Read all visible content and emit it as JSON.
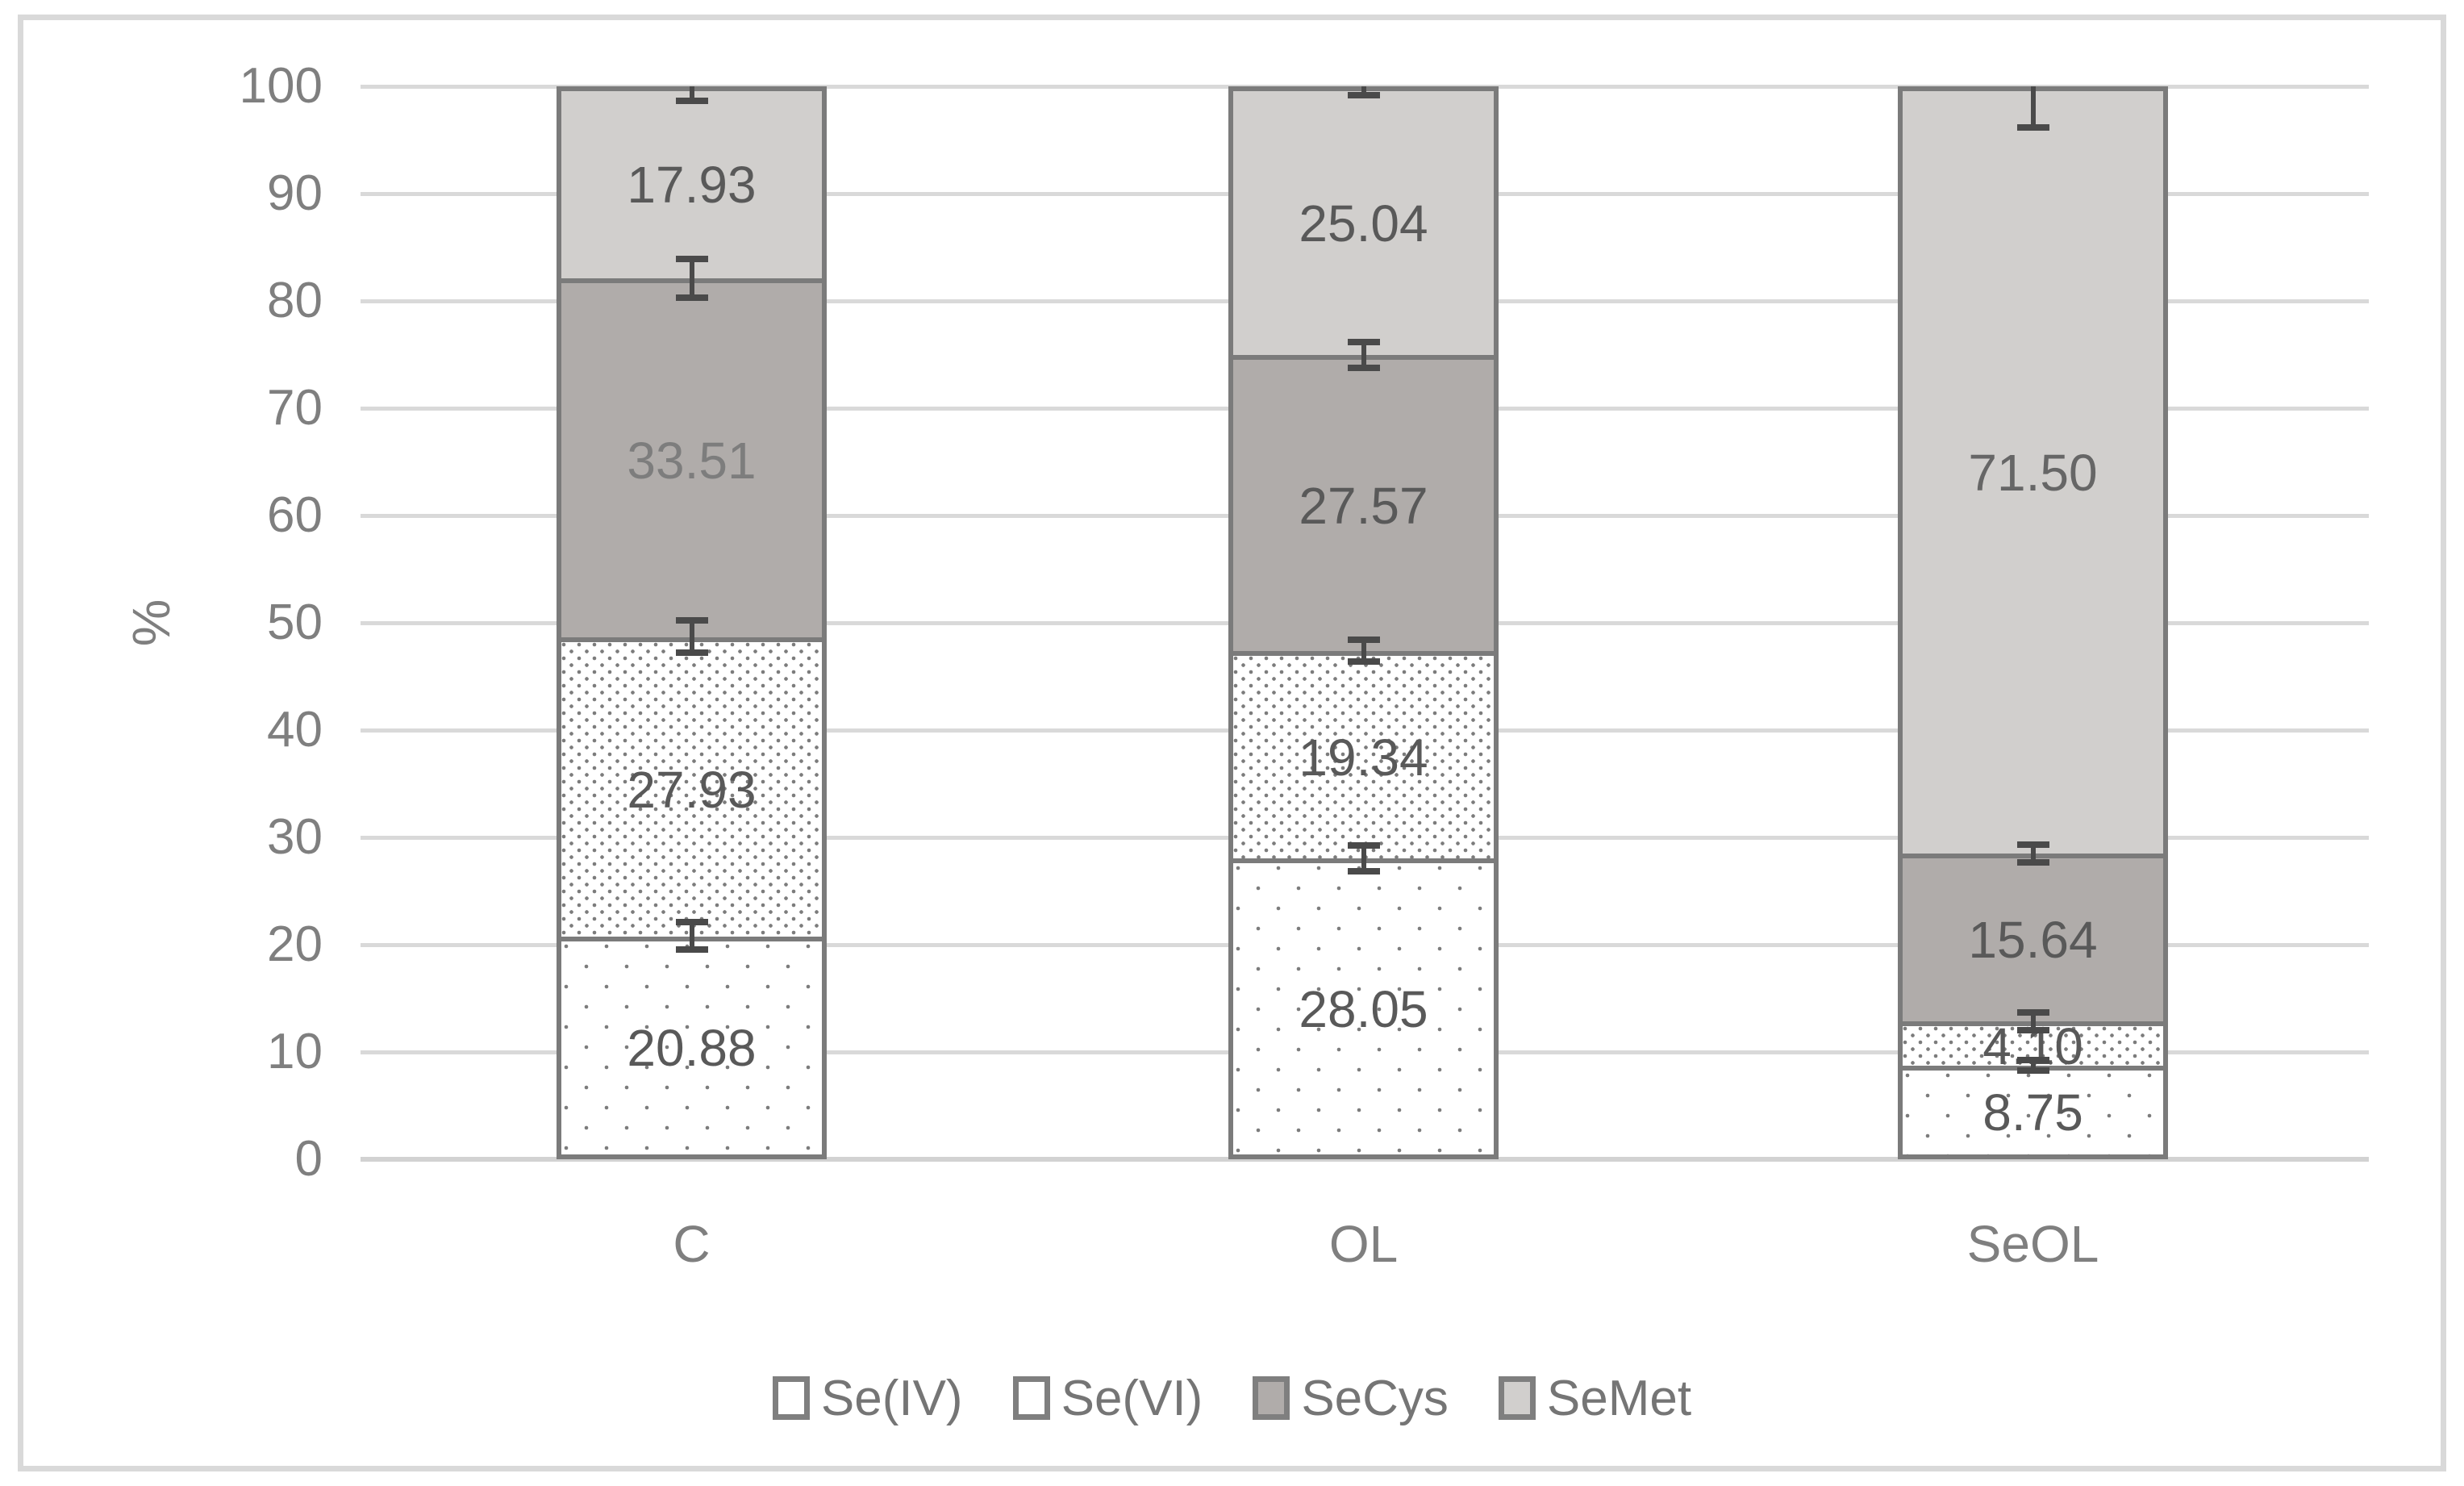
{
  "chart_data": {
    "type": "bar",
    "stacked": true,
    "title": "",
    "categories": [
      "C",
      "OL",
      "SeOL"
    ],
    "series": [
      {
        "name": "Se(IV)",
        "style": "dot-sparse",
        "fill": "#ffffff",
        "values": [
          20.88,
          28.05,
          8.75
        ],
        "labels": [
          "20.88",
          "28.05",
          "8.75"
        ]
      },
      {
        "name": "Se(VI)",
        "style": "dot-dense",
        "fill": "#ffffff",
        "values": [
          27.93,
          19.34,
          4.1
        ],
        "labels": [
          "27.93",
          "19.34",
          "4.10"
        ]
      },
      {
        "name": "SeCys",
        "style": "solid",
        "fill": "#b0acaa",
        "values": [
          33.51,
          27.57,
          15.64
        ],
        "labels": [
          "33.51",
          "27.57",
          "15.64"
        ]
      },
      {
        "name": "SeMet",
        "style": "solid",
        "fill": "#d1cfcd",
        "values": [
          17.93,
          25.04,
          71.5
        ],
        "labels": [
          "17.93",
          "25.04",
          "71.50"
        ]
      }
    ],
    "label_colors": [
      [
        "#595959",
        "#595959",
        "#595959"
      ],
      [
        "#595959",
        "#595959",
        "#595959"
      ],
      [
        "#7d7d7d",
        "#595959",
        "#595959"
      ],
      [
        "#595959",
        "#595959",
        "#666666"
      ]
    ],
    "error_bars_pct": [
      [
        1.3,
        1.5,
        1.8,
        1.35
      ],
      [
        1.2,
        1.0,
        1.2,
        0.8
      ],
      [
        0.5,
        0.8,
        0.85,
        3.8
      ]
    ],
    "ylabel": "%",
    "ylim": [
      0,
      100
    ],
    "yticks": [
      "0",
      "10",
      "20",
      "30",
      "40",
      "50",
      "60",
      "70",
      "80",
      "90",
      "100"
    ],
    "grid": "horizontal",
    "legend": {
      "position": "bottom",
      "entries": [
        "Se(IV)",
        "Se(VI)",
        "SeCys",
        "SeMet"
      ]
    }
  },
  "colors": {
    "semet_fill": "#d1cfcd",
    "secys_fill": "#b0acaa",
    "pattern_dot": "#7c7c7c",
    "bar_border": "#7b7b7b",
    "error_bar": "#4a4a4a",
    "gridline": "#d9d9d9",
    "axis_text": "#7f7f7f",
    "data_label": "#595959",
    "chart_border": "#d9d9d9",
    "background": "#ffffff"
  }
}
